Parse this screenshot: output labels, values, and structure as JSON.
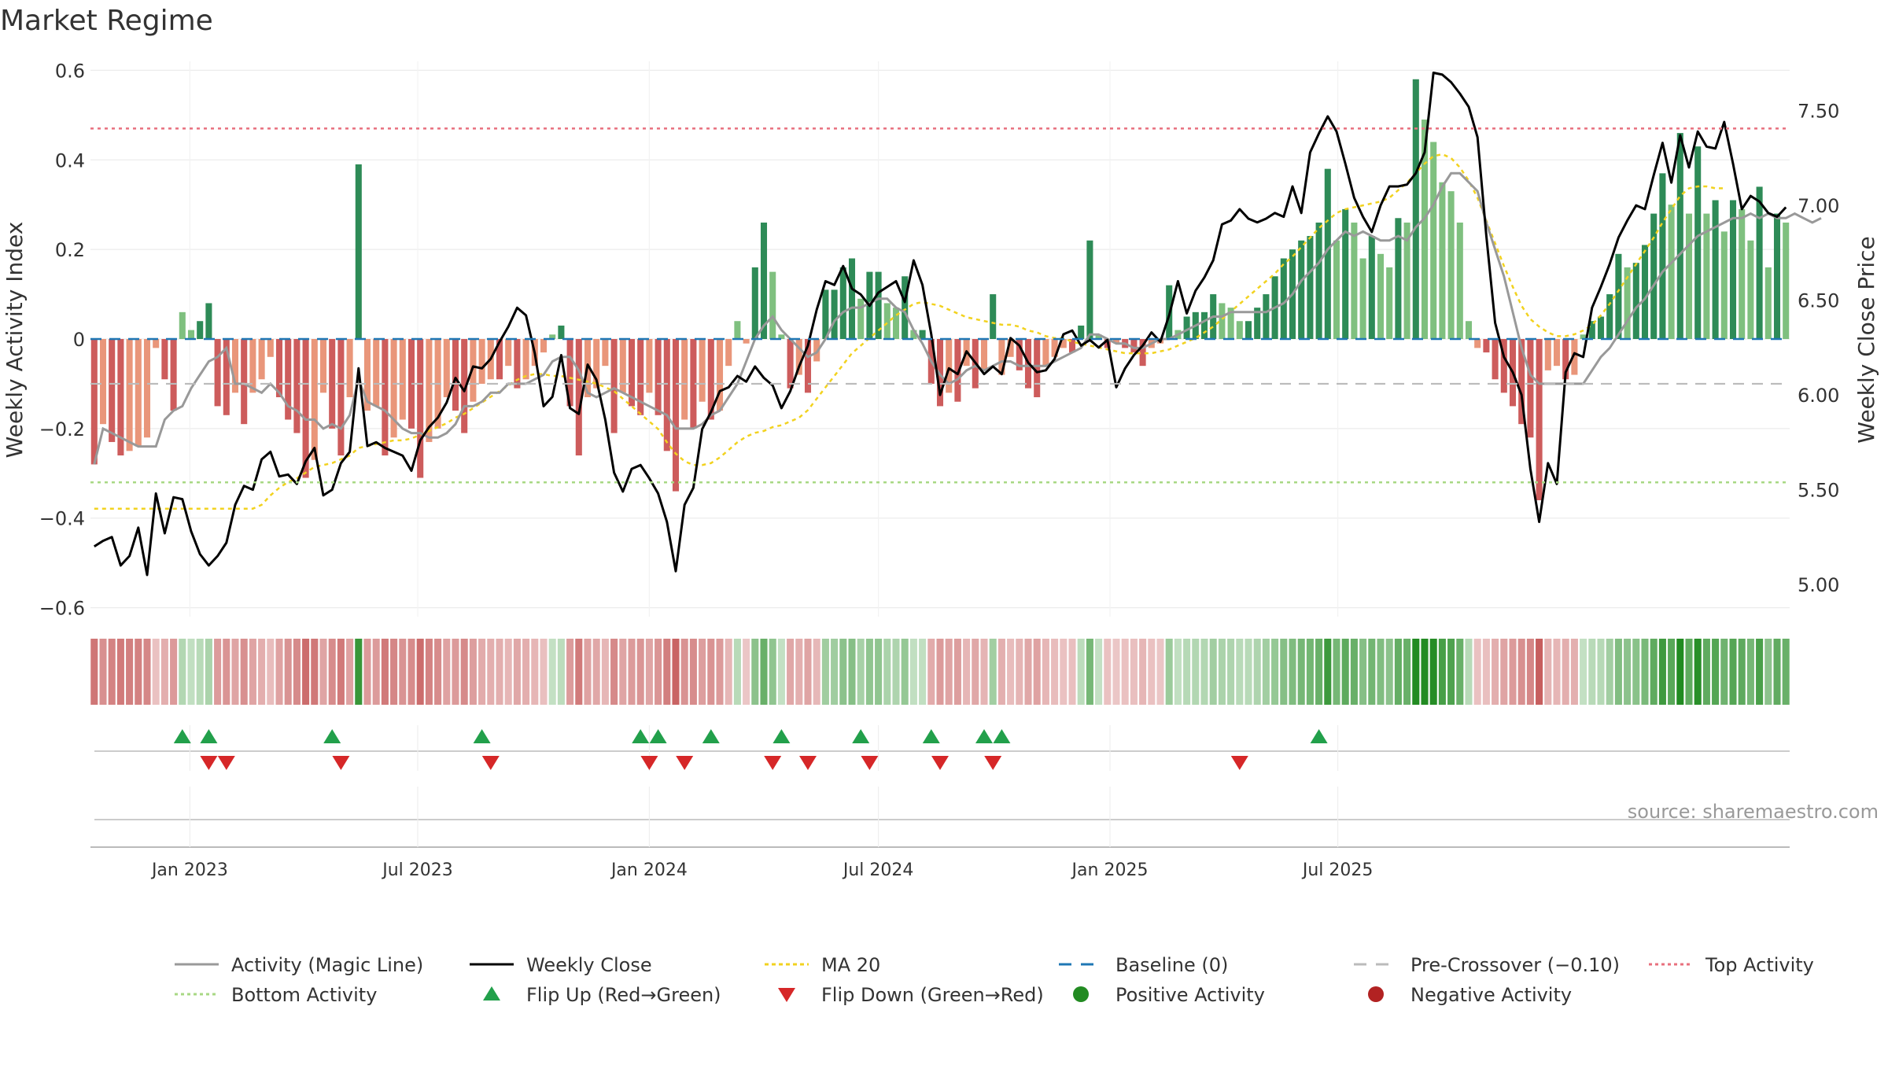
{
  "chart_data": {
    "type": "bar",
    "title": "Market Regime",
    "ylabel_left": "Weekly Activity Index",
    "ylabel_right": "Weekly Close Price",
    "source": "source: sharemaestro.com",
    "x_start": "2022-10-17",
    "week_step_days": 7,
    "x_ticks": [
      "2023-01-01",
      "2023-07-01",
      "2024-01-01",
      "2024-07-01",
      "2025-01-01",
      "2025-07-01"
    ],
    "x_tick_labels": [
      "Jan 2023",
      "Jul 2023",
      "Jan 2024",
      "Jul 2024",
      "Jan 2025",
      "Jul 2025"
    ],
    "ylim_left": [
      -0.62,
      0.62
    ],
    "ylim_right": [
      4.83,
      7.76
    ],
    "yticks_left": [
      -0.6,
      -0.4,
      -0.2,
      0,
      0.2,
      0.4,
      0.6
    ],
    "yticks_left_labels": [
      "−0.6",
      "−0.4",
      "−0.2",
      "0",
      "0.2",
      "0.4",
      "0.6"
    ],
    "yticks_right": [
      5.0,
      5.5,
      6.0,
      6.5,
      7.0,
      7.5
    ],
    "yticks_right_labels": [
      "5.00",
      "5.50",
      "6.00",
      "6.50",
      "7.00",
      "7.50"
    ],
    "levels": {
      "baseline": 0,
      "pre_crossover": -0.1,
      "top_activity": 0.47,
      "bottom_activity": -0.32
    },
    "activity": [
      -0.28,
      -0.19,
      -0.23,
      -0.26,
      -0.25,
      -0.24,
      -0.22,
      -0.02,
      -0.09,
      -0.16,
      0.06,
      0.02,
      0.04,
      0.08,
      -0.15,
      -0.17,
      -0.12,
      -0.19,
      -0.12,
      -0.09,
      -0.04,
      -0.13,
      -0.18,
      -0.21,
      -0.31,
      -0.27,
      -0.12,
      -0.2,
      -0.26,
      -0.13,
      0.39,
      -0.16,
      -0.15,
      -0.26,
      -0.22,
      -0.18,
      -0.2,
      -0.31,
      -0.23,
      -0.2,
      -0.13,
      -0.16,
      -0.21,
      -0.14,
      -0.1,
      -0.09,
      -0.09,
      -0.06,
      -0.11,
      -0.09,
      -0.06,
      -0.03,
      0.01,
      0.03,
      -0.15,
      -0.26,
      -0.13,
      -0.11,
      -0.06,
      -0.21,
      -0.12,
      -0.15,
      -0.17,
      -0.12,
      -0.17,
      -0.25,
      -0.34,
      -0.18,
      -0.2,
      -0.14,
      -0.18,
      -0.16,
      -0.06,
      0.04,
      -0.01,
      0.16,
      0.26,
      0.15,
      0.01,
      -0.11,
      -0.08,
      -0.12,
      -0.05,
      0.11,
      0.11,
      0.16,
      0.18,
      0.09,
      0.15,
      0.15,
      0.08,
      0.07,
      0.14,
      0.02,
      0.02,
      -0.1,
      -0.15,
      -0.12,
      -0.14,
      -0.06,
      -0.11,
      -0.07,
      0.1,
      -0.08,
      -0.04,
      -0.07,
      -0.11,
      -0.13,
      -0.06,
      -0.04,
      -0.02,
      -0.03,
      0.03,
      0.22,
      0.01,
      -0.02,
      -0.01,
      -0.02,
      -0.03,
      -0.06,
      -0.02,
      -0.01,
      0.12,
      0.02,
      0.05,
      0.06,
      0.06,
      0.1,
      0.08,
      0.07,
      0.04,
      0.04,
      0.07,
      0.1,
      0.14,
      0.18,
      0.2,
      0.22,
      0.23,
      0.26,
      0.38,
      0.22,
      0.29,
      0.26,
      0.18,
      0.23,
      0.19,
      0.16,
      0.27,
      0.26,
      0.58,
      0.49,
      0.44,
      0.35,
      0.33,
      0.26,
      0.04,
      -0.02,
      -0.03,
      -0.09,
      -0.12,
      -0.15,
      -0.19,
      -0.22,
      -0.36,
      -0.07,
      -0.06,
      -0.09,
      -0.08,
      0.01,
      0.04,
      0.05,
      0.1,
      0.19,
      0.16,
      0.17,
      0.21,
      0.28,
      0.37,
      0.3,
      0.46,
      0.28,
      0.43,
      0.28,
      0.31,
      0.24,
      0.31,
      0.29,
      0.22,
      0.34,
      0.16,
      0.28,
      0.26
    ],
    "magic_line": [
      -0.28,
      -0.2,
      -0.21,
      -0.22,
      -0.23,
      -0.24,
      -0.24,
      -0.24,
      -0.18,
      -0.16,
      -0.15,
      -0.11,
      -0.08,
      -0.05,
      -0.04,
      -0.02,
      -0.1,
      -0.1,
      -0.11,
      -0.12,
      -0.1,
      -0.12,
      -0.15,
      -0.16,
      -0.18,
      -0.18,
      -0.2,
      -0.19,
      -0.2,
      -0.17,
      -0.09,
      -0.14,
      -0.15,
      -0.16,
      -0.18,
      -0.2,
      -0.21,
      -0.21,
      -0.22,
      -0.22,
      -0.21,
      -0.19,
      -0.15,
      -0.15,
      -0.14,
      -0.12,
      -0.12,
      -0.1,
      -0.1,
      -0.1,
      -0.09,
      -0.08,
      -0.05,
      -0.04,
      -0.04,
      -0.07,
      -0.12,
      -0.13,
      -0.12,
      -0.11,
      -0.12,
      -0.13,
      -0.14,
      -0.15,
      -0.16,
      -0.17,
      -0.2,
      -0.2,
      -0.2,
      -0.19,
      -0.17,
      -0.16,
      -0.13,
      -0.1,
      -0.05,
      0.0,
      0.03,
      0.05,
      0.02,
      0.0,
      -0.02,
      -0.04,
      -0.03,
      0.0,
      0.04,
      0.06,
      0.07,
      0.07,
      0.08,
      0.09,
      0.09,
      0.07,
      0.06,
      0.02,
      -0.01,
      -0.05,
      -0.08,
      -0.1,
      -0.09,
      -0.07,
      -0.06,
      -0.07,
      -0.06,
      -0.05,
      -0.05,
      -0.06,
      -0.06,
      -0.06,
      -0.06,
      -0.05,
      -0.04,
      -0.03,
      -0.02,
      0.01,
      0.01,
      0.0,
      -0.01,
      -0.01,
      -0.02,
      -0.02,
      -0.01,
      0.0,
      0.0,
      0.01,
      0.02,
      0.03,
      0.04,
      0.05,
      0.05,
      0.06,
      0.06,
      0.06,
      0.06,
      0.06,
      0.07,
      0.08,
      0.1,
      0.13,
      0.15,
      0.17,
      0.2,
      0.22,
      0.24,
      0.23,
      0.24,
      0.23,
      0.22,
      0.22,
      0.23,
      0.22,
      0.25,
      0.27,
      0.3,
      0.34,
      0.37,
      0.37,
      0.35,
      0.33,
      0.26,
      0.2,
      0.14,
      0.06,
      -0.02,
      -0.08,
      -0.1,
      -0.1,
      -0.1,
      -0.1,
      -0.1,
      -0.1,
      -0.07,
      -0.04,
      -0.02,
      0.01,
      0.04,
      0.07,
      0.09,
      0.12,
      0.15,
      0.17,
      0.19,
      0.21,
      0.23,
      0.24,
      0.25,
      0.26,
      0.27,
      0.27,
      0.28,
      0.27,
      0.28,
      0.27,
      0.27,
      0.28,
      0.27,
      0.26,
      0.27
    ],
    "weekly_close": [
      5.2,
      5.23,
      5.25,
      5.1,
      5.15,
      5.3,
      5.05,
      5.48,
      5.27,
      5.46,
      5.45,
      5.28,
      5.16,
      5.1,
      5.15,
      5.22,
      5.42,
      5.52,
      5.5,
      5.66,
      5.7,
      5.57,
      5.58,
      5.53,
      5.65,
      5.72,
      5.47,
      5.5,
      5.64,
      5.7,
      6.14,
      5.73,
      5.75,
      5.72,
      5.7,
      5.68,
      5.6,
      5.76,
      5.83,
      5.88,
      5.96,
      6.09,
      6.02,
      6.15,
      6.14,
      6.19,
      6.28,
      6.36,
      6.46,
      6.42,
      6.22,
      5.94,
      5.99,
      6.21,
      5.93,
      5.9,
      6.16,
      6.08,
      5.87,
      5.59,
      5.49,
      5.61,
      5.63,
      5.56,
      5.48,
      5.33,
      5.07,
      5.42,
      5.51,
      5.82,
      5.91,
      6.02,
      6.04,
      6.1,
      6.07,
      6.15,
      6.09,
      6.05,
      5.93,
      6.02,
      6.15,
      6.26,
      6.45,
      6.6,
      6.58,
      6.68,
      6.56,
      6.53,
      6.47,
      6.54,
      6.57,
      6.6,
      6.49,
      6.71,
      6.58,
      6.32,
      6.0,
      6.14,
      6.11,
      6.23,
      6.17,
      6.11,
      6.15,
      6.11,
      6.3,
      6.26,
      6.17,
      6.12,
      6.13,
      6.19,
      6.32,
      6.34,
      6.26,
      6.29,
      6.25,
      6.29,
      6.04,
      6.14,
      6.21,
      6.26,
      6.33,
      6.28,
      6.42,
      6.6,
      6.43,
      6.55,
      6.62,
      6.71,
      6.9,
      6.92,
      6.98,
      6.93,
      6.91,
      6.93,
      6.96,
      6.94,
      7.1,
      6.96,
      7.28,
      7.38,
      7.47,
      7.39,
      7.22,
      7.04,
      6.94,
      6.86,
      7.0,
      7.1,
      7.1,
      7.11,
      7.17,
      7.28,
      7.7,
      7.69,
      7.65,
      7.59,
      7.52,
      7.36,
      6.84,
      6.38,
      6.2,
      6.12,
      6.0,
      5.61,
      5.33,
      5.64,
      5.53,
      6.12,
      6.22,
      6.2,
      6.46,
      6.57,
      6.69,
      6.83,
      6.92,
      7.0,
      6.98,
      7.16,
      7.33,
      7.12,
      7.37,
      7.2,
      7.39,
      7.31,
      7.3,
      7.44,
      7.22,
      6.98,
      7.05,
      7.02,
      6.96,
      6.94,
      6.99
    ],
    "ma20": [
      5.4,
      5.4,
      5.4,
      5.4,
      5.4,
      5.4,
      5.4,
      5.4,
      5.4,
      5.4,
      5.4,
      5.4,
      5.4,
      5.4,
      5.4,
      5.4,
      5.4,
      5.4,
      5.4,
      5.42,
      5.47,
      5.51,
      5.54,
      5.56,
      5.59,
      5.62,
      5.63,
      5.64,
      5.66,
      5.68,
      5.72,
      5.73,
      5.74,
      5.75,
      5.76,
      5.76,
      5.77,
      5.79,
      5.81,
      5.83,
      5.85,
      5.88,
      5.9,
      5.93,
      5.96,
      5.99,
      6.02,
      6.05,
      6.08,
      6.1,
      6.11,
      6.11,
      6.1,
      6.1,
      6.09,
      6.08,
      6.07,
      6.06,
      6.04,
      6.02,
      5.98,
      5.94,
      5.9,
      5.86,
      5.82,
      5.75,
      5.69,
      5.65,
      5.63,
      5.63,
      5.64,
      5.67,
      5.71,
      5.75,
      5.78,
      5.8,
      5.81,
      5.83,
      5.84,
      5.86,
      5.88,
      5.92,
      5.98,
      6.04,
      6.1,
      6.16,
      6.22,
      6.26,
      6.3,
      6.34,
      6.38,
      6.42,
      6.45,
      6.48,
      6.49,
      6.48,
      6.47,
      6.45,
      6.43,
      6.41,
      6.4,
      6.39,
      6.38,
      6.37,
      6.37,
      6.36,
      6.34,
      6.33,
      6.31,
      6.3,
      6.3,
      6.28,
      6.27,
      6.26,
      6.25,
      6.24,
      6.23,
      6.22,
      6.22,
      6.22,
      6.22,
      6.23,
      6.24,
      6.26,
      6.28,
      6.3,
      6.33,
      6.36,
      6.4,
      6.44,
      6.48,
      6.52,
      6.56,
      6.6,
      6.64,
      6.69,
      6.73,
      6.78,
      6.83,
      6.88,
      6.92,
      6.96,
      6.98,
      6.99,
      7.0,
      7.01,
      7.02,
      7.04,
      7.08,
      7.12,
      7.17,
      7.22,
      7.26,
      7.27,
      7.25,
      7.2,
      7.13,
      7.04,
      6.92,
      6.8,
      6.68,
      6.57,
      6.47,
      6.4,
      6.36,
      6.33,
      6.31,
      6.31,
      6.32,
      6.34,
      6.37,
      6.42,
      6.48,
      6.55,
      6.62,
      6.69,
      6.76,
      6.83,
      6.91,
      6.98,
      7.05,
      7.09,
      7.1,
      7.1,
      7.09,
      7.09
    ],
    "flip_up_weeks": [
      10,
      13,
      27,
      44,
      62,
      64,
      70,
      78,
      87,
      95,
      101,
      103,
      139
    ],
    "flip_down_weeks": [
      13,
      15,
      28,
      45,
      63,
      67,
      77,
      81,
      88,
      96,
      102,
      130
    ],
    "legend": {
      "magic_line": "Activity (Magic Line)",
      "weekly_close": "Weekly Close",
      "ma20": "MA 20",
      "baseline": "Baseline (0)",
      "pre_crossover": "Pre-Crossover (−0.10)",
      "top_activity": "Top Activity",
      "bottom_activity": "Bottom Activity",
      "flip_up": "Flip Up (Red→Green)",
      "flip_down": "Flip Down (Green→Red)",
      "positive": "Positive Activity",
      "negative": "Negative Activity"
    },
    "colors": {
      "pos_strong": "#2e8b57",
      "pos_light": "#7fc07f",
      "neg_strong": "#cd5c5c",
      "neg_light": "#e9967a",
      "magic_line": "#999999",
      "weekly_close": "#000000",
      "ma20": "#f2d21f",
      "baseline": "#1f77b4",
      "pre_crossover": "#bbbbbb",
      "top_activity": "#e8707e",
      "bottom_activity": "#a8d884",
      "flip_up": "#22a04b",
      "flip_down": "#d62728",
      "positive_dot": "#228b22",
      "negative_dot": "#b22222"
    }
  }
}
